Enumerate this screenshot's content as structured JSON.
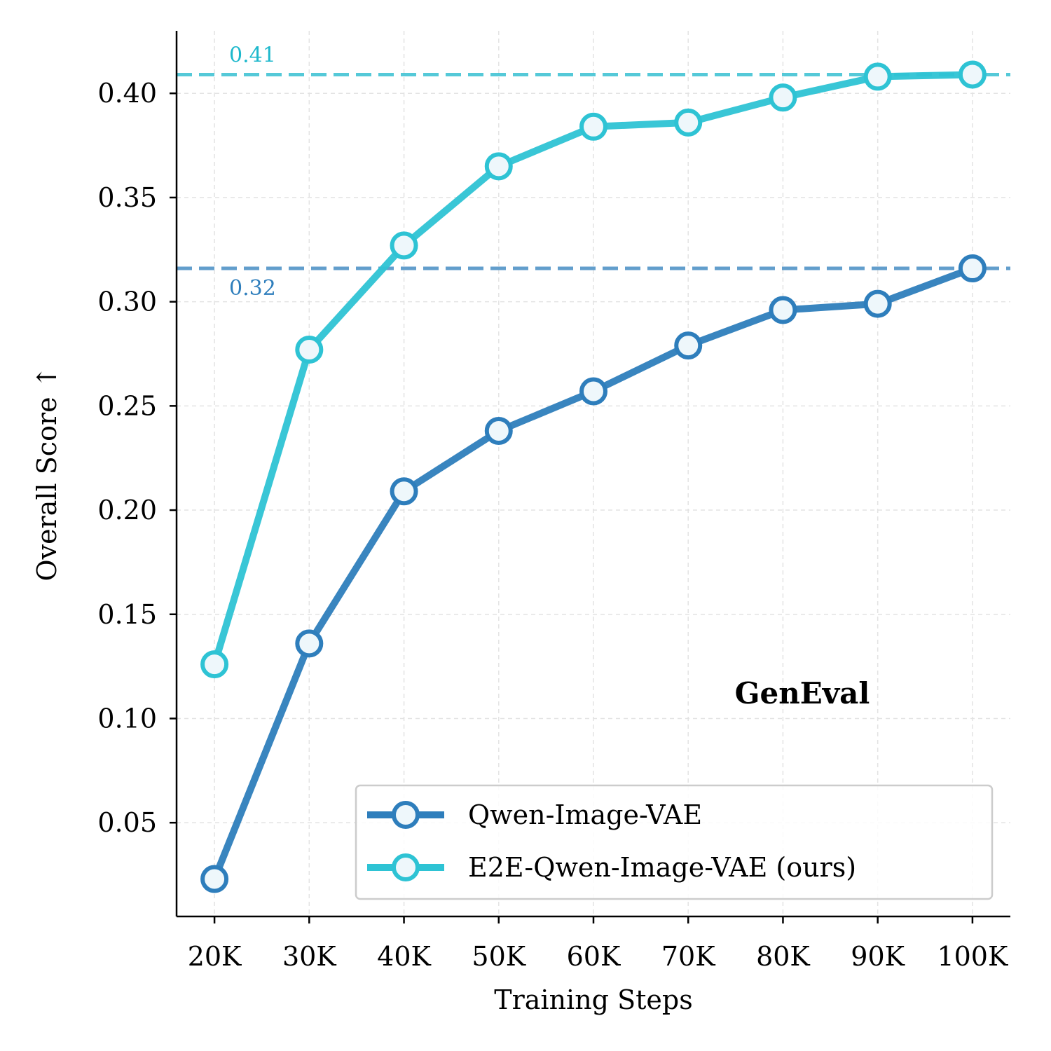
{
  "chart_data": {
    "type": "line",
    "panel_label": "GenEval",
    "xlabel": "Training Steps",
    "ylabel": "Overall Score ↑",
    "categories": [
      "20K",
      "30K",
      "40K",
      "50K",
      "60K",
      "70K",
      "80K",
      "90K",
      "100K"
    ],
    "x": [
      20000,
      30000,
      40000,
      50000,
      60000,
      70000,
      80000,
      90000,
      100000
    ],
    "xlim": [
      16000,
      104000
    ],
    "ylim": [
      0.005,
      0.43
    ],
    "yticks": [
      0.05,
      0.1,
      0.15,
      0.2,
      0.25,
      0.3,
      0.35,
      0.4
    ],
    "ytick_labels": [
      "0.05",
      "0.10",
      "0.15",
      "0.20",
      "0.25",
      "0.30",
      "0.35",
      "0.40"
    ],
    "grid": true,
    "legend_position": "bottom-right",
    "series": [
      {
        "name": "Qwen-Image-VAE",
        "color": "#2e7ebc",
        "values": [
          0.023,
          0.136,
          0.209,
          0.238,
          0.257,
          0.279,
          0.296,
          0.299,
          0.316
        ]
      },
      {
        "name": "E2E-Qwen-Image-VAE (ours)",
        "color": "#2ec3d4",
        "values": [
          0.126,
          0.277,
          0.327,
          0.365,
          0.384,
          0.386,
          0.398,
          0.408,
          0.409
        ]
      }
    ],
    "reference_lines": [
      {
        "value": 0.409,
        "label": "0.41",
        "color": "#1db8cc"
      },
      {
        "value": 0.316,
        "label": "0.32",
        "color": "#2e7ebc"
      }
    ]
  }
}
